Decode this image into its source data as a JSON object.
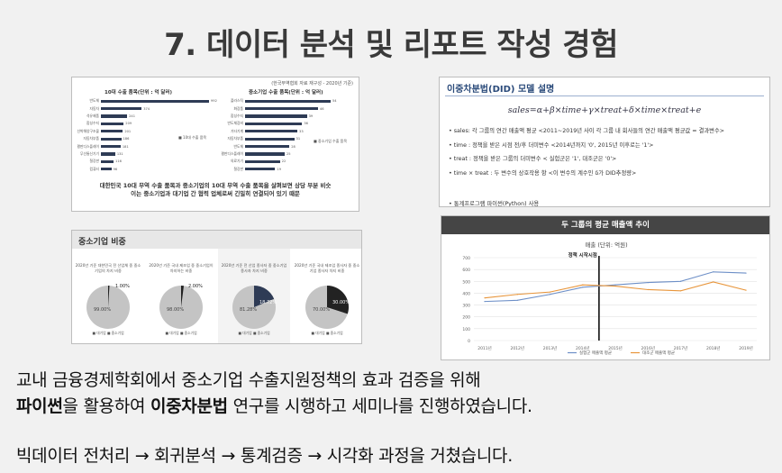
{
  "slide": {
    "title": "7. 데이터 분석 및 리포트 작성 경험"
  },
  "bars_card": {
    "source": "(한국무역협회 자료 재구성 - 2020년 기준)",
    "chart_left_title": "10대 수출 품목(단위 : 억 달러)",
    "chart_right_title": "중소기업 수출 품목(단위 : 억 달러)",
    "legend_left": "■ 10대 수출 품목",
    "legend_right": "■ 중소기업 수출 품목",
    "caption_line1": "대한민국 10대 무역 수출 품목과 중소기업의 10대 무역 수출 품목을 살펴보면 상당 부분 비슷",
    "caption_line2": "이는 중소기업과 대기업 간 협력 업체로써 긴밀히 연결되어 있기 때문"
  },
  "chart_data": [
    {
      "type": "bar",
      "orientation": "horizontal",
      "title": "10대 수출 품목(단위 : 억 달러)",
      "categories": [
        "반도체",
        "자동차",
        "석유제품",
        "합성수지",
        "선박해양구조물",
        "자동차부품",
        "평판디스플레이",
        "무선통신기기",
        "철강판",
        "컴퓨터"
      ],
      "values": [
        992,
        374,
        241,
        209,
        201,
        186,
        181,
        131,
        116,
        96
      ]
    },
    {
      "type": "bar",
      "orientation": "horizontal",
      "title": "중소기업 수출 품목(단위 : 억 달러)",
      "categories": [
        "플라스틱",
        "화장품",
        "합성수지",
        "반도체장비",
        "기타기계",
        "자동차부품",
        "반도체",
        "평판디스플레이",
        "의료기기",
        "철강판"
      ],
      "values": [
        54,
        46,
        39,
        36,
        33,
        31,
        28,
        25,
        22,
        19
      ]
    },
    {
      "type": "pie",
      "items": [
        {
          "caption": "2020년 기준 대한민국 전 산업체 중 중소기업의 차지 비중",
          "small_label": "1.00%",
          "big_label": "99.00%",
          "small_value": 1.0,
          "big_value": 99.0,
          "small_color": "#222222"
        },
        {
          "caption": "2020년 기준 국내 제조업 중 중소기업이 차지하는 비중",
          "small_label": "2.00%",
          "big_label": "98.00%",
          "small_value": 2.0,
          "big_value": 98.0,
          "small_color": "#222222"
        },
        {
          "caption": "2020년 기준 전 산업 종사자 중 중소기업 종사자 차지 비중",
          "small_label": "18.72%",
          "big_label": "81.28%",
          "small_value": 18.72,
          "big_value": 81.28,
          "small_color": "#2e3b55"
        },
        {
          "caption": "2020년 기준 국내 제조업 종사자 중 중소기업 종사자 차지 비중",
          "small_label": "30.00%",
          "big_label": "70.00%",
          "small_value": 30.0,
          "big_value": 70.0,
          "small_color": "#222222"
        }
      ],
      "legend": "■ 대기업  ■ 중소기업"
    },
    {
      "type": "line",
      "title": "두 그룹의 평균 매출액 추이",
      "subtitle": "매출 (단위: 억원)",
      "x": [
        "2011년",
        "2012년",
        "2013년",
        "2014년",
        "2015년",
        "2016년",
        "2017년",
        "2018년",
        "2019년"
      ],
      "ylim": [
        0,
        700
      ],
      "yticks": [
        0,
        100,
        200,
        300,
        400,
        500,
        600,
        700
      ],
      "annotation": "정책 시작시점",
      "annotation_x": 3.5,
      "series": [
        {
          "name": "실험군 매출액 평균",
          "color": "#6d8fc7",
          "values": [
            330,
            340,
            390,
            450,
            470,
            490,
            500,
            580,
            570
          ]
        },
        {
          "name": "대조군 매출액 평균",
          "color": "#e8953a",
          "values": [
            360,
            390,
            410,
            470,
            460,
            430,
            420,
            495,
            425
          ]
        }
      ]
    }
  ],
  "did_card": {
    "title": "이중차분법(DID) 모델 설명",
    "formula": "sales=α+β×time+γ×treat+δ×time×treat+e",
    "bullets": [
      "sales: 각 그룹의 연간 매출액 평균    <2011~2019년 사이 각 그룹 내 회사들의 연간 매출액 평균값 = 결과변수>",
      "time : 정책을 받은 시점 전/후 더미변수    <2014년까지 '0', 2015년 이후로는 '1'>",
      "treat : 정책을 받은 그룹의 더미변수    < 실험군은 '1', 대조군은 '0'>",
      "time × treat : 두 변수의 상호작용 항    <이 변수의 계수인 δ가 DID추정량>"
    ],
    "footer": "통계프로그램 파이썬(Python) 사용"
  },
  "pies_card": {
    "title": "중소기업 비중"
  },
  "body": {
    "line1": "교내 금융경제학회에서 중소기업 수출지원정책의 효과 검증을 위해",
    "line2_bold1": "파이썬",
    "line2_mid": "을 활용하여 ",
    "line2_bold2": "이중차분법",
    "line2_end": " 연구를 시행하고 세미나를 진행하였습니다.",
    "line3": "빅데이터 전처리 → 회귀분석 → 통계검증 → 시각화 과정을 거쳤습니다."
  }
}
